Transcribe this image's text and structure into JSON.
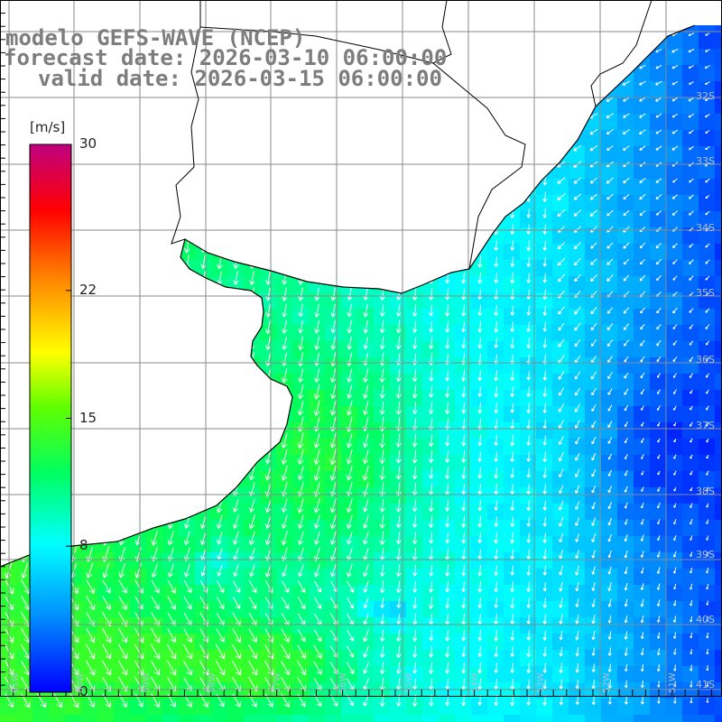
{
  "title": {
    "line1": "modelo GEFS-WAVE (NCEP)",
    "line2": "forecast date: 2026-03-10 06:00:00",
    "line3": "valid date: 2026-03-15 06:00:00"
  },
  "colorbar": {
    "unit": "[m/s]",
    "ticks": [
      {
        "label": "30",
        "value": 30
      },
      {
        "label": "22",
        "value": 22
      },
      {
        "label": "15",
        "value": 15
      },
      {
        "label": "8",
        "value": 8
      },
      {
        "label": "0",
        "value": 0
      }
    ],
    "min": 0,
    "max": 30
  },
  "lat_labels": [
    "32S",
    "33S",
    "34S",
    "35S",
    "36S",
    "37S",
    "38S",
    "39S",
    "40S",
    "41S"
  ],
  "lon_labels": [
    "61W",
    "60W",
    "59W",
    "58W",
    "57W",
    "56W",
    "55W",
    "54W",
    "53W",
    "52W",
    "51W"
  ],
  "colors": {
    "ocean_low": "#0000ff",
    "ocean_mid": "#00e5ff",
    "ocean_high": "#00ff00",
    "land": "#ffffff",
    "grid": "#808080",
    "coast": "#000000",
    "arrows": "#ffffff"
  }
}
